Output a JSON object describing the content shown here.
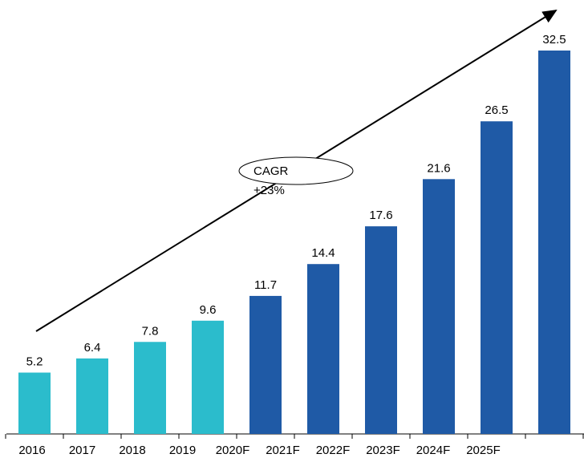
{
  "chart_data": {
    "type": "bar",
    "categories": [
      "2016",
      "2017",
      "2018",
      "2019",
      "2020F",
      "2021F",
      "2022F",
      "2023F",
      "2024F",
      "2025F"
    ],
    "values": [
      5.2,
      6.4,
      7.8,
      9.6,
      11.7,
      14.4,
      17.6,
      21.6,
      26.5,
      32.5
    ],
    "colors": [
      "#2bbccc",
      "#2bbccc",
      "#2bbccc",
      "#2bbccc",
      "#1f5aa6",
      "#1f5aa6",
      "#1f5aa6",
      "#1f5aa6",
      "#1f5aa6",
      "#1f5aa6"
    ],
    "annotation": [
      "CAGR",
      "+23%"
    ]
  }
}
